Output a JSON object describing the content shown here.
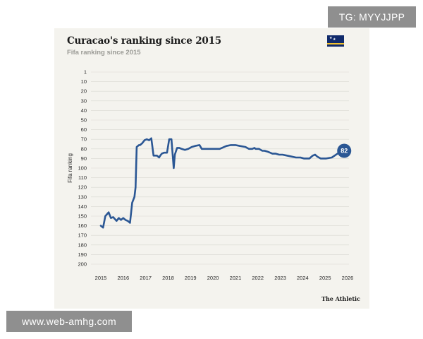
{
  "header": {
    "title": "Curacao's ranking since 2015",
    "subtitle": "Fifa ranking since 2015"
  },
  "footer": {
    "brand": "The Athletic"
  },
  "overlays": {
    "top_tag": "TG: MYYJJPP",
    "bottom_tag": "www.web-amhg.com"
  },
  "colors": {
    "line": "#2b5794",
    "badge": "#2b5794",
    "background": "#f4f3ee",
    "gridline": "#d9d8d2"
  },
  "chart_data": {
    "type": "line",
    "title": "Curacao's ranking since 2015",
    "subtitle": "Fifa ranking since 2015",
    "xlabel": "",
    "ylabel": "Fifa ranking",
    "y_inverted": true,
    "ylim": [
      1,
      200
    ],
    "xlim": [
      2015,
      2026
    ],
    "y_ticks": [
      1,
      10,
      20,
      30,
      40,
      50,
      60,
      70,
      80,
      90,
      100,
      110,
      120,
      130,
      140,
      150,
      160,
      170,
      180,
      190,
      200
    ],
    "x_ticks": [
      "2015",
      "2016",
      "2017",
      "2018",
      "2019",
      "2020",
      "2021",
      "2022",
      "2023",
      "2024",
      "2025",
      "2026"
    ],
    "grid": true,
    "end_label": "82",
    "series": [
      {
        "x": [
          2015.0,
          2015.1,
          2015.2,
          2015.35,
          2015.45,
          2015.55,
          2015.7,
          2015.8,
          2015.9,
          2016.0,
          2016.1,
          2016.2,
          2016.3,
          2016.4,
          2016.5,
          2016.55,
          2016.6,
          2016.7,
          2016.75,
          2016.85,
          2016.95,
          2017.05,
          2017.15,
          2017.25,
          2017.35,
          2017.5,
          2017.6,
          2017.65,
          2017.72,
          2017.82,
          2017.95,
          2018.05,
          2018.15,
          2018.25,
          2018.3,
          2018.4,
          2018.5,
          2018.6,
          2018.75,
          2018.9,
          2019.05,
          2019.2,
          2019.4,
          2019.5,
          2019.65,
          2019.8,
          2019.85,
          2020.0,
          2020.3,
          2020.6,
          2020.8,
          2020.9,
          2021.0,
          2021.2,
          2021.45,
          2021.6,
          2021.75,
          2021.85,
          2021.9,
          2022.05,
          2022.2,
          2022.3,
          2022.45,
          2022.55,
          2022.65,
          2022.8,
          2022.95,
          2023.1,
          2023.3,
          2023.5,
          2023.7,
          2023.8,
          2023.9,
          2024.05,
          2024.2,
          2024.3,
          2024.45,
          2024.55,
          2024.65,
          2024.8,
          2024.9,
          2025.05,
          2025.3,
          2025.55,
          2025.85
        ],
        "y": [
          160,
          162,
          150,
          146,
          152,
          151,
          155,
          152,
          154,
          152,
          154,
          155,
          157,
          136,
          130,
          120,
          78,
          76,
          76,
          74,
          71,
          70,
          71,
          69,
          87,
          87,
          89,
          87,
          85,
          84,
          84,
          70,
          70,
          100,
          86,
          79,
          79,
          80,
          81,
          80,
          78,
          77,
          76,
          80,
          80,
          80,
          80,
          80,
          80,
          77,
          76,
          76,
          76,
          77,
          78,
          80,
          80,
          79,
          80,
          80,
          82,
          82,
          83,
          84,
          85,
          85,
          86,
          86,
          87,
          88,
          89,
          89,
          89,
          90,
          90,
          90,
          87,
          86,
          88,
          90,
          90,
          90,
          89,
          85,
          82
        ]
      }
    ]
  }
}
